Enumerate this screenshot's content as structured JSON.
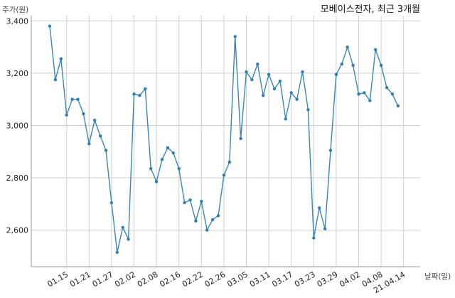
{
  "chart_data": {
    "type": "line",
    "title": "모베이스전자, 최근 3개월",
    "ylabel": "주가(원)",
    "xlabel": "날짜(일)",
    "ylim": [
      2460,
      3420
    ],
    "yticks": [
      2600,
      2800,
      3000,
      3200,
      3400
    ],
    "ytick_labels": [
      "2,600",
      "2,800",
      "3,000",
      "3,200",
      "3,400"
    ],
    "xtick_labels": [
      "01.15",
      "01.21",
      "01.27",
      "02.02",
      "02.08",
      "02.16",
      "02.22",
      "02.26",
      "03.05",
      "03.11",
      "03.17",
      "03.23",
      "03.29",
      "04.02",
      "04.08",
      "21.04.14"
    ],
    "xtick_index": [
      3,
      7,
      11,
      15,
      19,
      23,
      27,
      31,
      35,
      39,
      43,
      47,
      51,
      55,
      59,
      63
    ],
    "grid": true,
    "series": [
      {
        "color": "#3a86b4",
        "values": [
          3380,
          3175,
          3255,
          3040,
          3100,
          3100,
          3045,
          2930,
          3020,
          2960,
          2905,
          2705,
          2515,
          2610,
          2565,
          3120,
          3115,
          3140,
          2835,
          2785,
          2870,
          2915,
          2895,
          2835,
          2705,
          2715,
          2635,
          2710,
          2600,
          2640,
          2655,
          2810,
          2860,
          3340,
          2950,
          3205,
          3175,
          3235,
          3115,
          3195,
          3140,
          3170,
          3025,
          3125,
          3100,
          3205,
          3060,
          2570,
          2685,
          2605,
          2905,
          3195,
          3235,
          3300,
          3230,
          3120,
          3125,
          3095,
          3290,
          3230,
          3145,
          3120,
          3075
        ]
      }
    ]
  }
}
